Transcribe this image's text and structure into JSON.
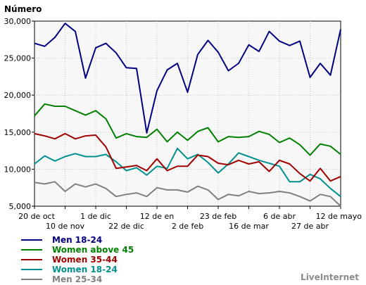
{
  "brand": "LiveInternet",
  "chart_data": {
    "type": "line",
    "ylabel": "Número",
    "ylim": [
      5000,
      30000
    ],
    "yticks": [
      "5,000",
      "10,000",
      "15,000",
      "20,000",
      "25,000",
      "30,000"
    ],
    "ytick_values": [
      5000,
      10000,
      15000,
      20000,
      25000,
      30000
    ],
    "grid": true,
    "legend_position": "bottom-left",
    "xticks": [
      {
        "label": "20 de oct",
        "index": 0,
        "row": 1
      },
      {
        "label": "10 de nov",
        "index": 3,
        "row": 2
      },
      {
        "label": "1 de dic",
        "index": 6,
        "row": 1
      },
      {
        "label": "22 de dic",
        "index": 9,
        "row": 2
      },
      {
        "label": "12 de en",
        "index": 12,
        "row": 1
      },
      {
        "label": "2 de feb",
        "index": 15,
        "row": 2
      },
      {
        "label": "23 de feb",
        "index": 18,
        "row": 1
      },
      {
        "label": "16 de mar",
        "index": 21,
        "row": 2
      },
      {
        "label": "6 de abr",
        "index": 24,
        "row": 1
      },
      {
        "label": "27 de abr",
        "index": 27,
        "row": 2
      },
      {
        "label": "12 de mayo",
        "index": 30,
        "row": 1
      }
    ],
    "series": [
      {
        "name": "Men 18-24",
        "color": "#000080",
        "values": [
          27000,
          26600,
          27800,
          29700,
          28600,
          22300,
          26400,
          27000,
          25700,
          23700,
          23600,
          14900,
          20600,
          23400,
          24300,
          20400,
          25500,
          27400,
          25800,
          23300,
          24300,
          26800,
          25900,
          28600,
          27300,
          26700,
          27300,
          22400,
          24300,
          22700,
          28900
        ]
      },
      {
        "name": "Women above 45",
        "color": "#008000",
        "values": [
          17200,
          18800,
          18500,
          18500,
          17900,
          17300,
          17900,
          16800,
          14200,
          14800,
          14400,
          14300,
          15400,
          13700,
          15000,
          13900,
          15100,
          15600,
          13700,
          14400,
          14300,
          14400,
          15100,
          14700,
          13600,
          14200,
          13300,
          11900,
          13400,
          13100,
          12000
        ]
      },
      {
        "name": "Women 35-44",
        "color": "#a00000",
        "values": [
          14800,
          14500,
          14100,
          14800,
          14100,
          14500,
          14600,
          13000,
          10100,
          10300,
          10500,
          9800,
          11400,
          9800,
          10400,
          10400,
          11900,
          11700,
          10800,
          10600,
          11200,
          10700,
          11000,
          9700,
          11200,
          10700,
          9400,
          8400,
          10100,
          8400,
          9000
        ]
      },
      {
        "name": "Women 18-24",
        "color": "#009090",
        "values": [
          10700,
          11800,
          11100,
          11700,
          12100,
          11700,
          11700,
          12000,
          11000,
          9800,
          10200,
          9200,
          10400,
          10100,
          12800,
          11400,
          12000,
          10900,
          9500,
          10700,
          12200,
          11700,
          11200,
          10800,
          10400,
          8300,
          8300,
          9300,
          8700,
          7400,
          6300
        ]
      },
      {
        "name": "Men 25-34",
        "color": "#808080",
        "values": [
          8200,
          8000,
          8300,
          7000,
          8000,
          7600,
          8000,
          7400,
          6300,
          6600,
          6800,
          6300,
          7500,
          7200,
          7200,
          6900,
          7700,
          7200,
          5900,
          6600,
          6400,
          7000,
          6700,
          6800,
          7000,
          6800,
          6300,
          5700,
          6600,
          6300,
          5000
        ]
      }
    ]
  }
}
